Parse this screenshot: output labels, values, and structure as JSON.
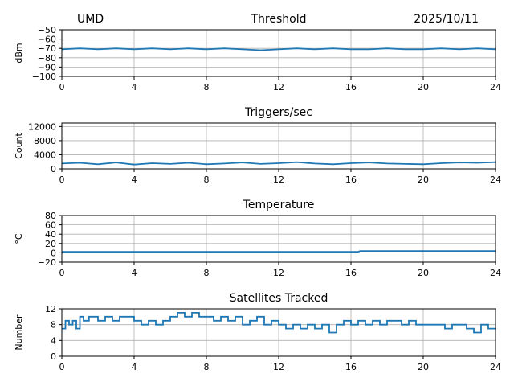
{
  "header": {
    "station": "UMD",
    "date": "2025/10/11"
  },
  "chart_data": [
    {
      "type": "line",
      "title": "Threshold",
      "ylabel": "dBm",
      "xlim": [
        0,
        24
      ],
      "ylim": [
        -100,
        -50
      ],
      "xticks": [
        0,
        4,
        8,
        12,
        16,
        20,
        24
      ],
      "yticks": [
        -100,
        -90,
        -80,
        -70,
        -60,
        -50
      ],
      "grid": true,
      "color": "#1f77b4",
      "series": [
        {
          "x": [
            0,
            1,
            2,
            3,
            4,
            5,
            6,
            7,
            8,
            9,
            10,
            11,
            12,
            13,
            14,
            15,
            16,
            17,
            18,
            19,
            20,
            21,
            22,
            23,
            24
          ],
          "values": [
            -71,
            -70,
            -71,
            -70,
            -71,
            -70,
            -71,
            -70,
            -71,
            -70,
            -71,
            -72,
            -71,
            -70,
            -71,
            -70,
            -71,
            -71,
            -70,
            -71,
            -71,
            -70,
            -71,
            -70,
            -71
          ]
        }
      ]
    },
    {
      "type": "line",
      "title": "Triggers/sec",
      "ylabel": "Count",
      "xlim": [
        0,
        24
      ],
      "ylim": [
        0,
        13000
      ],
      "xticks": [
        0,
        4,
        8,
        12,
        16,
        20,
        24
      ],
      "yticks": [
        0,
        4000,
        8000,
        12000
      ],
      "grid": true,
      "color": "#1f77b4",
      "series": [
        {
          "x": [
            0,
            1,
            2,
            3,
            4,
            5,
            6,
            7,
            8,
            9,
            10,
            11,
            12,
            13,
            14,
            15,
            16,
            17,
            18,
            19,
            20,
            21,
            22,
            23,
            24
          ],
          "values": [
            1500,
            1700,
            1300,
            1800,
            1200,
            1600,
            1400,
            1700,
            1300,
            1500,
            1800,
            1400,
            1600,
            1900,
            1500,
            1300,
            1600,
            1800,
            1500,
            1400,
            1300,
            1600,
            1800,
            1700,
            1900
          ]
        }
      ]
    },
    {
      "type": "line",
      "title": "Temperature",
      "ylabel": "°C",
      "xlim": [
        0,
        24
      ],
      "ylim": [
        -20,
        80
      ],
      "xticks": [
        0,
        4,
        8,
        12,
        16,
        20,
        24
      ],
      "yticks": [
        -20,
        0,
        20,
        40,
        60,
        80
      ],
      "grid": true,
      "color": "#1f77b4",
      "series": [
        {
          "x": [
            0,
            4,
            8,
            12,
            16,
            16.4,
            16.5,
            20,
            24
          ],
          "values": [
            2,
            2,
            2,
            2,
            2,
            2,
            4,
            4,
            4
          ]
        }
      ]
    },
    {
      "type": "line",
      "title": "Satellites Tracked",
      "ylabel": "Number",
      "xlim": [
        0,
        24
      ],
      "ylim": [
        0,
        12
      ],
      "xticks": [
        0,
        4,
        8,
        12,
        16,
        20,
        24
      ],
      "yticks": [
        0,
        4,
        8,
        12
      ],
      "grid": true,
      "color": "#1f77b4",
      "series": [
        {
          "x": [
            0,
            0.2,
            0.4,
            0.6,
            0.8,
            1,
            1.2,
            1.5,
            2,
            2.4,
            2.8,
            3.2,
            3.6,
            4,
            4.4,
            4.8,
            5.2,
            5.6,
            6,
            6.4,
            6.8,
            7.2,
            7.6,
            8,
            8.4,
            8.8,
            9.2,
            9.6,
            10,
            10.4,
            10.8,
            11.2,
            11.6,
            12,
            12.4,
            12.8,
            13.2,
            13.6,
            14,
            14.4,
            14.8,
            15.2,
            15.6,
            16,
            16.4,
            16.8,
            17.2,
            17.6,
            18,
            18.4,
            18.8,
            19.2,
            19.6,
            20,
            20.4,
            20.8,
            21.2,
            21.6,
            22,
            22.4,
            22.8,
            23.2,
            23.6,
            24
          ],
          "values": [
            7,
            9,
            8,
            9,
            7,
            10,
            9,
            10,
            9,
            10,
            9,
            10,
            10,
            9,
            8,
            9,
            8,
            9,
            10,
            11,
            10,
            11,
            10,
            10,
            9,
            10,
            9,
            10,
            8,
            9,
            10,
            8,
            9,
            8,
            7,
            8,
            7,
            8,
            7,
            8,
            6,
            8,
            9,
            8,
            9,
            8,
            9,
            8,
            9,
            9,
            8,
            9,
            8,
            8,
            8,
            8,
            7,
            8,
            8,
            7,
            6,
            8,
            7,
            7
          ]
        }
      ]
    }
  ]
}
